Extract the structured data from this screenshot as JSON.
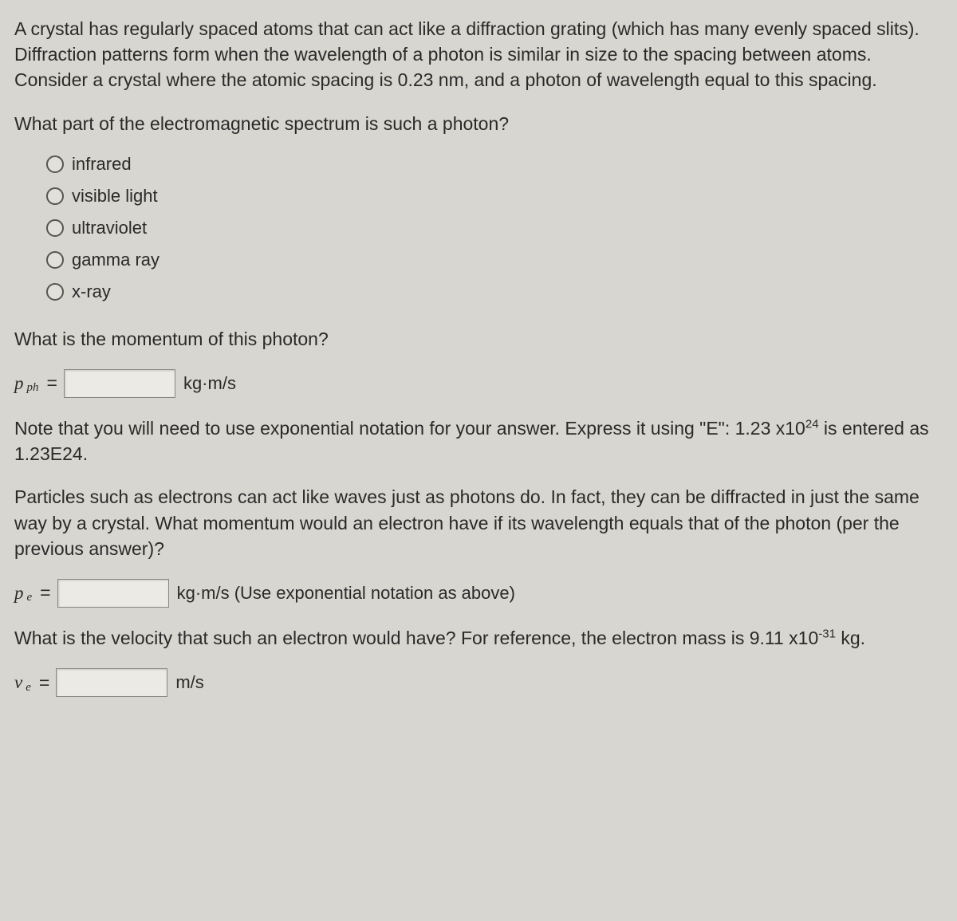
{
  "intro": "A crystal has regularly spaced atoms that can act like a diffraction grating (which has many evenly spaced slits).  Diffraction patterns form when the wavelength of a photon is similar in size to the spacing between atoms.  Consider a crystal where the atomic spacing is 0.23 nm, and a photon of wavelength equal to this spacing.",
  "q1": "What part of the electromagnetic spectrum is such a photon?",
  "options": {
    "a": "infrared",
    "b": "visible light",
    "c": "ultraviolet",
    "d": "gamma ray",
    "e": "x-ray"
  },
  "q2": "What is the momentum of this photon?",
  "pph": {
    "var": "p",
    "sub": "ph",
    "eq": "=",
    "unit": "kg·m/s",
    "value": ""
  },
  "note_pre": "Note that you will need to use exponential notation for your answer.  Express it using \"E\": 1.23 x10",
  "note_exp": "24",
  "note_post": " is entered as 1.23E24.",
  "q3": "Particles such as electrons can act like waves just as photons do.  In fact, they can be diffracted in just the same way by a crystal.  What momentum would an electron have if its wavelength equals that of the photon (per the previous answer)?",
  "pe": {
    "var": "p",
    "sub": "e",
    "eq": "=",
    "unit": "kg·m/s   (Use exponential notation as above)",
    "value": ""
  },
  "q4_pre": "What is the velocity that such an electron would have?  For reference, the electron mass is 9.11 x10",
  "q4_exp": "-31",
  "q4_post": " kg.",
  "ve": {
    "var": "v",
    "sub": "e",
    "eq": "=",
    "unit": "m/s",
    "value": ""
  }
}
